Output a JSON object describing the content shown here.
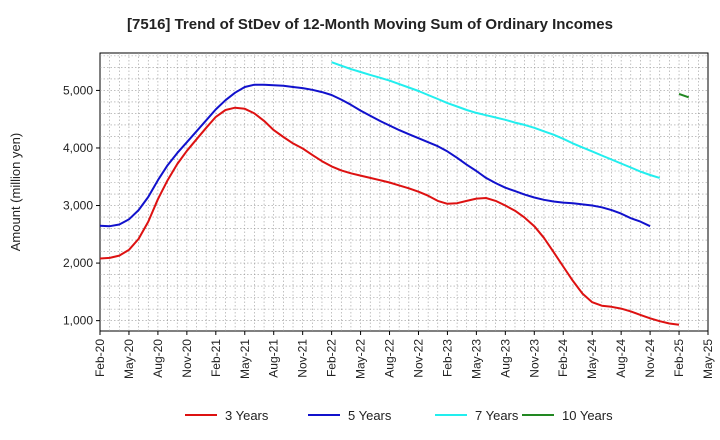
{
  "chart_data": {
    "type": "line",
    "title": "[7516]  Trend of StDev of 12-Month Moving Sum of Ordinary Incomes",
    "xlabel": "",
    "ylabel": "Amount (million yen)",
    "x_tick_labels": [
      "Feb-20",
      "May-20",
      "Aug-20",
      "Nov-20",
      "Feb-21",
      "May-21",
      "Aug-21",
      "Nov-21",
      "Feb-22",
      "May-22",
      "Aug-22",
      "Nov-22",
      "Feb-23",
      "May-23",
      "Aug-23",
      "Nov-23",
      "Feb-24",
      "May-24",
      "Aug-24",
      "Nov-24",
      "Feb-25",
      "May-25"
    ],
    "y_ticks": [
      1000,
      2000,
      3000,
      4000,
      5000
    ],
    "y_tick_labels": [
      "1,000",
      "2,000",
      "3,000",
      "4,000",
      "5,000"
    ],
    "ylim": [
      820,
      5650
    ],
    "x_month_range": [
      0,
      63
    ],
    "grid": true,
    "legend_position": "bottom",
    "series": [
      {
        "name": "3 Years",
        "color": "#dd1111",
        "start_month": 0,
        "values": [
          2080,
          2090,
          2130,
          2230,
          2420,
          2720,
          3110,
          3440,
          3720,
          3950,
          4150,
          4350,
          4540,
          4660,
          4700,
          4680,
          4600,
          4470,
          4310,
          4190,
          4080,
          3990,
          3880,
          3770,
          3680,
          3610,
          3560,
          3520,
          3480,
          3440,
          3400,
          3350,
          3300,
          3240,
          3170,
          3080,
          3030,
          3040,
          3080,
          3120,
          3130,
          3080,
          3000,
          2910,
          2790,
          2640,
          2440,
          2190,
          1940,
          1690,
          1470,
          1320,
          1260,
          1240,
          1210,
          1160,
          1100,
          1040,
          990,
          950,
          930
        ]
      },
      {
        "name": "5 Years",
        "color": "#1111cc",
        "start_month": 0,
        "values": [
          2650,
          2640,
          2670,
          2760,
          2920,
          3150,
          3440,
          3700,
          3910,
          4100,
          4290,
          4480,
          4670,
          4830,
          4960,
          5060,
          5100,
          5100,
          5090,
          5080,
          5060,
          5040,
          5010,
          4970,
          4920,
          4840,
          4750,
          4650,
          4560,
          4470,
          4390,
          4310,
          4240,
          4170,
          4100,
          4030,
          3940,
          3830,
          3710,
          3600,
          3480,
          3390,
          3310,
          3250,
          3190,
          3140,
          3100,
          3070,
          3050,
          3040,
          3020,
          3000,
          2970,
          2920,
          2860,
          2780,
          2720,
          2640
        ]
      },
      {
        "name": "7 Years",
        "color": "#22eeee",
        "start_month": 24,
        "values": [
          5490,
          5430,
          5370,
          5320,
          5270,
          5220,
          5170,
          5110,
          5050,
          4990,
          4920,
          4850,
          4780,
          4720,
          4660,
          4610,
          4570,
          4530,
          4490,
          4440,
          4400,
          4350,
          4290,
          4230,
          4160,
          4080,
          4010,
          3940,
          3870,
          3800,
          3730,
          3660,
          3590,
          3530,
          3480
        ]
      },
      {
        "name": "10 Years",
        "color": "#228822",
        "start_month": 60,
        "values": [
          4940,
          4880
        ]
      }
    ]
  }
}
